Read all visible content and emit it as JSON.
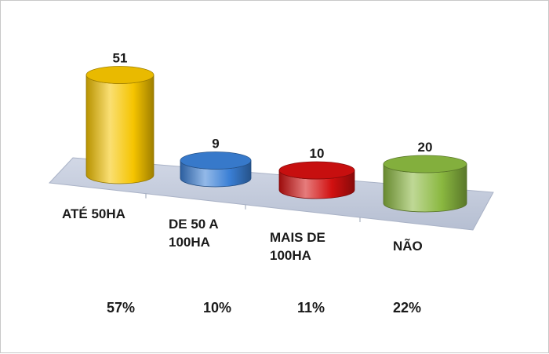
{
  "chart_data": {
    "type": "bar",
    "style": "3d-cylinder",
    "categories": [
      "ATÉ 50HA",
      "DE 50 A\n100HA",
      "MAIS DE\n100HA",
      "NÃO"
    ],
    "values": [
      51,
      9,
      10,
      20
    ],
    "percentages": [
      "57%",
      "10%",
      "11%",
      "22%"
    ],
    "colors": [
      "#f5c400",
      "#3a7fd5",
      "#d11010",
      "#8ab840"
    ],
    "ylim": [
      0,
      60
    ],
    "grid": false,
    "legend": "none"
  }
}
